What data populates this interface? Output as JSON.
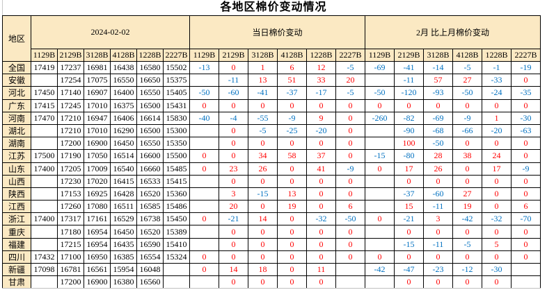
{
  "title": "各地区棉价变动情况",
  "colors": {
    "header_bg": "#FBE9C3",
    "positive_value": "#FF0000",
    "negative_value": "#0070C0",
    "grid_border": "#000000"
  },
  "table": {
    "region_header": "地区",
    "groups": [
      {
        "label": "2024-02-02"
      },
      {
        "label": "当日棉价变动"
      },
      {
        "label": "2月 比上月棉价变动"
      }
    ],
    "grade_columns": [
      "1129B",
      "2129B",
      "3128B",
      "4128B",
      "1228B",
      "2227B"
    ],
    "rows": [
      {
        "region": "全国",
        "prices": [
          17419,
          17237,
          16981,
          16438,
          16580,
          15502
        ],
        "daily_change": [
          -13,
          0,
          1,
          6,
          12,
          -5
        ],
        "monthly_change": [
          -69,
          -41,
          -14,
          -5,
          -1,
          -19
        ]
      },
      {
        "region": "安徽",
        "prices": [
          null,
          17254,
          17075,
          16550,
          16650,
          15375
        ],
        "daily_change": [
          null,
          -11,
          13,
          51,
          33,
          20
        ],
        "monthly_change": [
          null,
          -11,
          57,
          27,
          -33,
          0
        ]
      },
      {
        "region": "河北",
        "prices": [
          17450,
          17140,
          16907,
          16400,
          16550,
          15405
        ],
        "daily_change": [
          -50,
          -60,
          -41,
          -37,
          -17,
          -5
        ],
        "monthly_change": [
          -50,
          -120,
          -93,
          -50,
          -24,
          -35
        ]
      },
      {
        "region": "广东",
        "prices": [
          17415,
          17245,
          17010,
          16375,
          16500,
          15431
        ],
        "daily_change": [
          0,
          0,
          0,
          0,
          0,
          0
        ],
        "monthly_change": [
          0,
          0,
          0,
          0,
          0,
          0
        ]
      },
      {
        "region": "河南",
        "prices": [
          17470,
          17210,
          16947,
          16406,
          16614,
          15830
        ],
        "daily_change": [
          -40,
          -4,
          -55,
          -9,
          9,
          0
        ],
        "monthly_change": [
          -260,
          -82,
          -69,
          -9,
          1,
          -30
        ]
      },
      {
        "region": "湖北",
        "prices": [
          null,
          17210,
          17010,
          16290,
          16500,
          15300
        ],
        "daily_change": [
          null,
          0,
          -5,
          -25,
          -20,
          0
        ],
        "monthly_change": [
          null,
          -90,
          -68,
          -66,
          -20,
          -63
        ]
      },
      {
        "region": "湖南",
        "prices": [
          null,
          17200,
          16900,
          16450,
          16550,
          15350
        ],
        "daily_change": [
          null,
          0,
          0,
          0,
          0,
          0
        ],
        "monthly_change": [
          null,
          100,
          -50,
          0,
          0,
          0
        ]
      },
      {
        "region": "江苏",
        "prices": [
          17500,
          17190,
          17050,
          16514,
          16600,
          15500
        ],
        "daily_change": [
          0,
          0,
          34,
          58,
          37,
          0
        ],
        "monthly_change": [
          -15,
          -80,
          28,
          38,
          24,
          0
        ]
      },
      {
        "region": "山东",
        "prices": [
          17400,
          17205,
          17009,
          16540,
          16660,
          15485
        ],
        "daily_change": [
          0,
          23,
          26,
          0,
          41,
          -9
        ],
        "monthly_change": [
          0,
          17,
          26,
          0,
          17,
          -9
        ]
      },
      {
        "region": "山西",
        "prices": [
          null,
          17230,
          17020,
          16415,
          16533,
          15415
        ],
        "daily_change": [
          null,
          0,
          0,
          0,
          0,
          0
        ],
        "monthly_change": [
          null,
          0,
          0,
          0,
          0,
          0
        ]
      },
      {
        "region": "陕西",
        "prices": [
          null,
          17153,
          16925,
          16428,
          16520,
          15360
        ],
        "daily_change": [
          null,
          3,
          -15,
          13,
          0,
          0
        ],
        "monthly_change": [
          null,
          -37,
          -60,
          27,
          0,
          0
        ]
      },
      {
        "region": "江西",
        "prices": [
          null,
          17260,
          17080,
          16511,
          16585,
          15486
        ],
        "daily_change": [
          null,
          20,
          0,
          19,
          0,
          6
        ],
        "monthly_change": [
          null,
          15,
          -11,
          19,
          0,
          6
        ]
      },
      {
        "region": "浙江",
        "prices": [
          17400,
          17317,
          17161,
          16529,
          16738,
          15450
        ],
        "daily_change": [
          0,
          -21,
          14,
          0,
          -32,
          -50
        ],
        "monthly_change": [
          0,
          -21,
          3,
          -42,
          -32,
          -70
        ]
      },
      {
        "region": "重庆",
        "prices": [
          null,
          17180,
          16954,
          16450,
          16520,
          15389
        ],
        "daily_change": [
          null,
          0,
          0,
          0,
          0,
          0
        ],
        "monthly_change": [
          null,
          0,
          0,
          0,
          0,
          0
        ]
      },
      {
        "region": "福建",
        "prices": [
          null,
          17215,
          16954,
          16435,
          16590,
          15410
        ],
        "daily_change": [
          null,
          0,
          0,
          0,
          0,
          0
        ],
        "monthly_change": [
          null,
          -15,
          -11,
          -5,
          5,
          0
        ]
      },
      {
        "region": "四川",
        "prices": [
          17432,
          17100,
          16950,
          16385,
          16554,
          15324
        ],
        "daily_change": [
          0,
          0,
          0,
          0,
          0,
          0
        ],
        "monthly_change": [
          0,
          0,
          0,
          0,
          0,
          0
        ]
      },
      {
        "region": "新疆",
        "prices": [
          17098,
          16781,
          16561,
          15954,
          16048,
          null
        ],
        "daily_change": [
          0,
          14,
          18,
          0,
          11,
          null
        ],
        "monthly_change": [
          -42,
          -47,
          -23,
          -12,
          -30,
          null
        ]
      },
      {
        "region": "甘肃",
        "prices": [
          null,
          17200,
          16900,
          16380,
          16560,
          null
        ],
        "daily_change": [
          null,
          0,
          0,
          0,
          0,
          null
        ],
        "monthly_change": [
          null,
          0,
          0,
          0,
          0,
          null
        ]
      }
    ]
  }
}
